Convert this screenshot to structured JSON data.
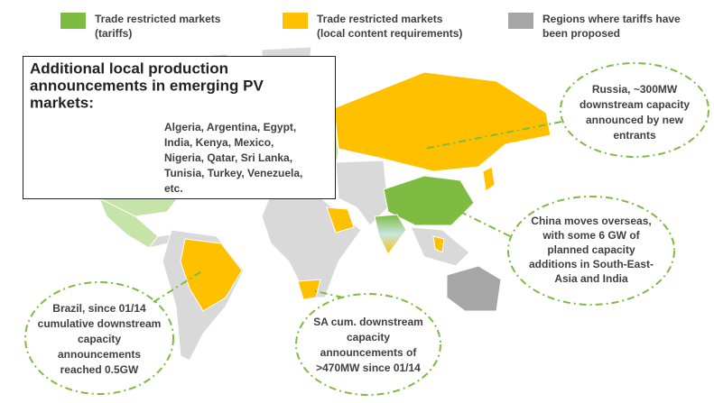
{
  "legend": [
    {
      "lines": [
        "Trade restricted markets",
        "(tariffs)"
      ],
      "color": "#7dbb42"
    },
    {
      "lines": [
        "Trade restricted markets",
        "(local content requirements)"
      ],
      "color": "#ffc000"
    },
    {
      "lines": [
        "Regions  where tariffs have",
        "been proposed"
      ],
      "color": "#a6a6a6"
    }
  ],
  "box": {
    "title_lines": [
      "Additional local production",
      "announcements in emerging PV",
      "markets:"
    ],
    "list_lines": [
      "Algeria, Argentina, Egypt,",
      "India, Kenya, Mexico,",
      "Nigeria, Qatar, Sri Lanka,",
      "Tunisia, Turkey, Venezuela,",
      "etc."
    ]
  },
  "callouts": {
    "russia": [
      "Russia, ~300MW",
      "downstream capacity",
      "announced  by new",
      "entrants"
    ],
    "china": [
      "China moves overseas,",
      "with some 6 GW of",
      "planned capacity",
      "additions  in South-East-",
      "Asia and India"
    ],
    "brazil": [
      "Brazil,  since 01/14",
      "cumulative downstream",
      "capacity",
      "announcements",
      "reached 0.5GW"
    ],
    "sa": [
      "SA cum. downstream",
      "capacity",
      "announcements of",
      ">470MW since 01/14"
    ]
  }
}
